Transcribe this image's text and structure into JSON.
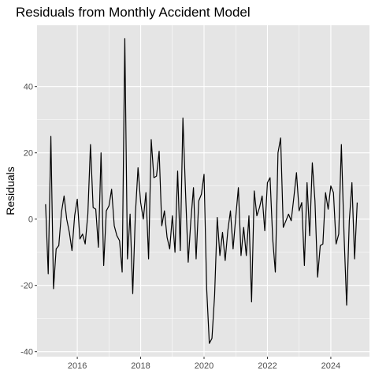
{
  "chart_data": {
    "type": "line",
    "title": "Residuals from Monthly Accident Model",
    "xlabel": "",
    "ylabel": "Residuals",
    "x_ticks": [
      2016,
      2018,
      2020,
      2022,
      2024
    ],
    "y_ticks": [
      -40,
      -20,
      0,
      20,
      40
    ],
    "xlim": [
      2014.73,
      2025.22
    ],
    "ylim": [
      -41.5,
      58.5
    ],
    "grid": true,
    "legend": "none",
    "colors": {
      "panel": "#e5e5e5",
      "grid": "#ffffff",
      "line": "#000000",
      "tick": "#4d4d4d"
    },
    "series": [
      {
        "x_start": 2015.0,
        "x_step": 0.08333,
        "values": [
          4.5,
          -16.5,
          25,
          -21,
          -9,
          -8,
          2,
          7,
          0,
          -4,
          -9.5,
          1,
          6,
          -6,
          -4.5,
          -7.5,
          1.5,
          22.5,
          3.5,
          3,
          -8.5,
          20,
          -14,
          2.5,
          4,
          9,
          -2,
          -5,
          -6.5,
          -16,
          54.5,
          -12,
          1.5,
          -22.5,
          1.5,
          15.5,
          5,
          0,
          8,
          -12,
          24,
          12.5,
          13,
          20.5,
          -2,
          2.5,
          -5.5,
          -9,
          1,
          -10,
          14.5,
          -9.5,
          30.5,
          8,
          -13,
          -0.5,
          9.5,
          -12,
          5.5,
          7.5,
          13.5,
          -21,
          -37.5,
          -36,
          -23,
          0.5,
          -11,
          -4,
          -12.5,
          -3.5,
          2.5,
          -9,
          0.5,
          9.5,
          -11,
          -2.5,
          -11,
          1,
          -25,
          8.5,
          1,
          3.5,
          7,
          -3.5,
          11,
          12.5,
          -6,
          -16,
          20,
          24.5,
          -2.5,
          -0.5,
          1.5,
          -0.5,
          6.5,
          14,
          2.5,
          5,
          -14,
          11,
          -5,
          17,
          5.5,
          -17.5,
          -8,
          -7.5,
          8,
          3,
          10,
          8,
          -7.5,
          -4.5,
          22.5,
          -4.5,
          -26,
          -0.5,
          11,
          -12,
          5
        ]
      }
    ]
  }
}
